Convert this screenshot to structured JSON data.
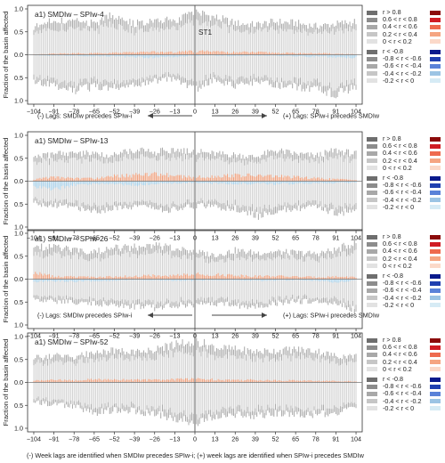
{
  "figure": {
    "y_axis_label": "Fraction of the basin affected",
    "footer_note": "(-) Week lags are identified when SMDIw precedes SPIw-i; (+) week lags are identified when SPIw-i precedes SMDIw",
    "lag_notes": [
      {
        "left": "(-) Lags: SMDIw precedes SPIw-i",
        "right": "(+) Lags: SPIw-i precedes SMDIw"
      },
      {
        "left": "(-) Lags: SMDIw precedes SPIw-i",
        "right": "(+) Lags: SPIw-i precedes SMDIw"
      }
    ],
    "legend": {
      "positive": [
        {
          "label": "r > 0.8",
          "gray": "#6e6e6e",
          "color": "#8b0a0a"
        },
        {
          "label": "0.6 < r < 0.8",
          "gray": "#8c8c8c",
          "color": "#d01c24"
        },
        {
          "label": "0.4 < r < 0.6",
          "gray": "#a8a8a8",
          "color": "#ee6a4e"
        },
        {
          "label": "0.2 < r < 0.4",
          "gray": "#c6c6c6",
          "color": "#f5a582"
        },
        {
          "label": "0 < r < 0.2",
          "gray": "#e2e2e2",
          "color": "#fbd9c9"
        }
      ],
      "negative": [
        {
          "label": "r < -0.8",
          "gray": "#6e6e6e",
          "color": "#0a1a8c"
        },
        {
          "label": "-0.8 < r < -0.6",
          "gray": "#8c8c8c",
          "color": "#2040b0"
        },
        {
          "label": "-0.6 < r < -0.4",
          "gray": "#a8a8a8",
          "color": "#5a82d8"
        },
        {
          "label": "-0.4 < r < -0.2",
          "gray": "#c6c6c6",
          "color": "#9cc4e4"
        },
        {
          "label": "-0.2 < r < 0",
          "gray": "#e2e2e2",
          "color": "#d6ebf5"
        }
      ]
    }
  },
  "chart_data": [
    {
      "type": "bar",
      "title": "a1) SMDIw – SPIw-4",
      "annotation": "ST1",
      "x_ticks": [
        -104,
        -91,
        -78,
        -65,
        -52,
        -39,
        -26,
        -13,
        0,
        13,
        26,
        39,
        52,
        65,
        78,
        91,
        104
      ],
      "y_ticks": [
        "1.0",
        "0.5",
        "0.0",
        "0.5",
        "1.0"
      ],
      "xlim": [
        -108,
        108
      ],
      "ylim": [
        -1,
        1
      ],
      "positive_envelope_x": [
        -104,
        -91,
        -78,
        -65,
        -52,
        -39,
        -26,
        -13,
        0,
        13,
        26,
        39,
        52,
        65,
        78,
        91,
        104
      ],
      "positive_envelope": [
        0.62,
        0.78,
        0.75,
        0.72,
        0.9,
        0.7,
        0.82,
        0.75,
        0.98,
        0.85,
        0.72,
        0.68,
        0.75,
        0.72,
        0.65,
        0.7,
        0.75
      ],
      "negative_envelope": [
        0.62,
        0.7,
        0.82,
        0.72,
        0.75,
        0.7,
        0.6,
        0.55,
        0.8,
        0.55,
        0.72,
        0.62,
        0.7,
        0.72,
        0.8,
        0.88,
        0.75
      ],
      "colored_positive": [
        0.01,
        0.02,
        0.03,
        0.03,
        0.04,
        0.05,
        0.06,
        0.05,
        0.07,
        0.06,
        0.05,
        0.05,
        0.04,
        0.03,
        0.03,
        0.02,
        0.01
      ],
      "colored_negative": [
        0.01,
        0.02,
        0.02,
        0.03,
        0.03,
        0.05,
        0.06,
        0.04,
        0.02,
        0.02,
        0.03,
        0.02,
        0.02,
        0.03,
        0.04,
        0.05,
        0.06
      ]
    },
    {
      "type": "bar",
      "title": "a1) SMDIw – SPIw-13",
      "annotation": "",
      "x_ticks": [
        -104,
        -91,
        -78,
        -65,
        -52,
        -39,
        -26,
        -13,
        0,
        13,
        26,
        39,
        52,
        65,
        78,
        91,
        104
      ],
      "y_ticks": [
        "1.0",
        "0.5",
        "0.0",
        "0.5",
        "1.0"
      ],
      "xlim": [
        -108,
        108
      ],
      "ylim": [
        -1,
        1
      ],
      "positive_envelope_x": [
        -104,
        -91,
        -78,
        -65,
        -52,
        -39,
        -26,
        -13,
        0,
        13,
        26,
        39,
        52,
        65,
        78,
        91,
        104
      ],
      "positive_envelope": [
        0.55,
        0.6,
        0.65,
        0.62,
        0.6,
        0.7,
        0.66,
        0.72,
        0.68,
        0.62,
        0.6,
        0.55,
        0.7,
        0.62,
        0.58,
        0.7,
        0.62
      ],
      "negative_envelope": [
        0.5,
        0.55,
        0.6,
        0.7,
        0.62,
        0.58,
        0.62,
        0.66,
        0.55,
        0.58,
        0.62,
        0.8,
        0.68,
        0.62,
        0.6,
        0.72,
        0.68
      ],
      "colored_positive": [
        0.04,
        0.08,
        0.06,
        0.05,
        0.1,
        0.12,
        0.15,
        0.1,
        0.08,
        0.1,
        0.12,
        0.11,
        0.1,
        0.08,
        0.06,
        0.04,
        0.03
      ],
      "colored_negative": [
        0.12,
        0.15,
        0.08,
        0.05,
        0.06,
        0.08,
        0.05,
        0.04,
        0.03,
        0.05,
        0.06,
        0.05,
        0.06,
        0.05,
        0.04,
        0.04,
        0.03
      ]
    },
    {
      "type": "bar",
      "title": "a1) SMDIw – SPIw-26",
      "annotation": "",
      "x_ticks": [
        -104,
        -91,
        -78,
        -65,
        -52,
        -39,
        -26,
        -13,
        0,
        13,
        26,
        39,
        52,
        65,
        78,
        91,
        104
      ],
      "y_ticks": [
        "1.0",
        "0.5",
        "0.0",
        "0.5",
        "1.0"
      ],
      "xlim": [
        -108,
        108
      ],
      "ylim": [
        -1,
        1
      ],
      "positive_envelope_x": [
        -104,
        -91,
        -78,
        -65,
        -52,
        -39,
        -26,
        -13,
        0,
        13,
        26,
        39,
        52,
        65,
        78,
        91,
        104
      ],
      "positive_envelope": [
        0.75,
        0.72,
        0.68,
        0.62,
        0.7,
        0.72,
        0.75,
        0.7,
        0.62,
        0.55,
        0.65,
        0.6,
        0.62,
        0.6,
        0.58,
        0.66,
        0.85
      ],
      "negative_envelope": [
        0.45,
        0.5,
        0.52,
        0.55,
        0.58,
        0.62,
        0.65,
        0.6,
        0.58,
        0.55,
        0.6,
        0.62,
        0.55,
        0.5,
        0.52,
        0.55,
        0.72
      ],
      "colored_positive": [
        0.12,
        0.06,
        0.05,
        0.04,
        0.05,
        0.06,
        0.08,
        0.07,
        0.1,
        0.09,
        0.08,
        0.06,
        0.06,
        0.05,
        0.04,
        0.05,
        0.04
      ],
      "colored_negative": [
        0.05,
        0.04,
        0.05,
        0.04,
        0.03,
        0.02,
        0.02,
        0.03,
        0.03,
        0.02,
        0.02,
        0.03,
        0.03,
        0.02,
        0.03,
        0.06,
        0.02
      ]
    },
    {
      "type": "bar",
      "title": "a1) SMDIw – SPIw-52",
      "annotation": "",
      "x_ticks": [
        -104,
        -91,
        -78,
        -65,
        -52,
        -39,
        -26,
        -13,
        0,
        13,
        26,
        39,
        52,
        65,
        78,
        91,
        104
      ],
      "y_ticks": [
        "1.0",
        "0.5",
        "0.0",
        "0.5",
        "1.0"
      ],
      "xlim": [
        -108,
        108
      ],
      "ylim": [
        -1,
        1
      ],
      "positive_envelope_x": [
        -104,
        -91,
        -78,
        -65,
        -52,
        -39,
        -26,
        -13,
        0,
        13,
        26,
        39,
        52,
        65,
        78,
        91,
        104
      ],
      "positive_envelope": [
        0.55,
        0.6,
        0.58,
        0.68,
        0.72,
        0.7,
        0.75,
        0.85,
        0.95,
        0.8,
        0.75,
        0.7,
        0.72,
        0.75,
        0.72,
        0.6,
        0.6
      ],
      "negative_envelope": [
        0.45,
        0.5,
        0.55,
        0.7,
        0.62,
        0.65,
        0.72,
        0.8,
        0.9,
        0.78,
        0.72,
        0.75,
        0.7,
        0.72,
        0.72,
        0.7,
        0.6
      ],
      "colored_positive": [
        0.04,
        0.05,
        0.04,
        0.06,
        0.06,
        0.05,
        0.05,
        0.06,
        0.07,
        0.06,
        0.05,
        0.05,
        0.04,
        0.04,
        0.03,
        0.03,
        0.02
      ],
      "colored_negative": [
        0.01,
        0.01,
        0.01,
        0.01,
        0.01,
        0.01,
        0.01,
        0.01,
        0.01,
        0.01,
        0.01,
        0.01,
        0.01,
        0.01,
        0.01,
        0.01,
        0.01
      ]
    }
  ]
}
